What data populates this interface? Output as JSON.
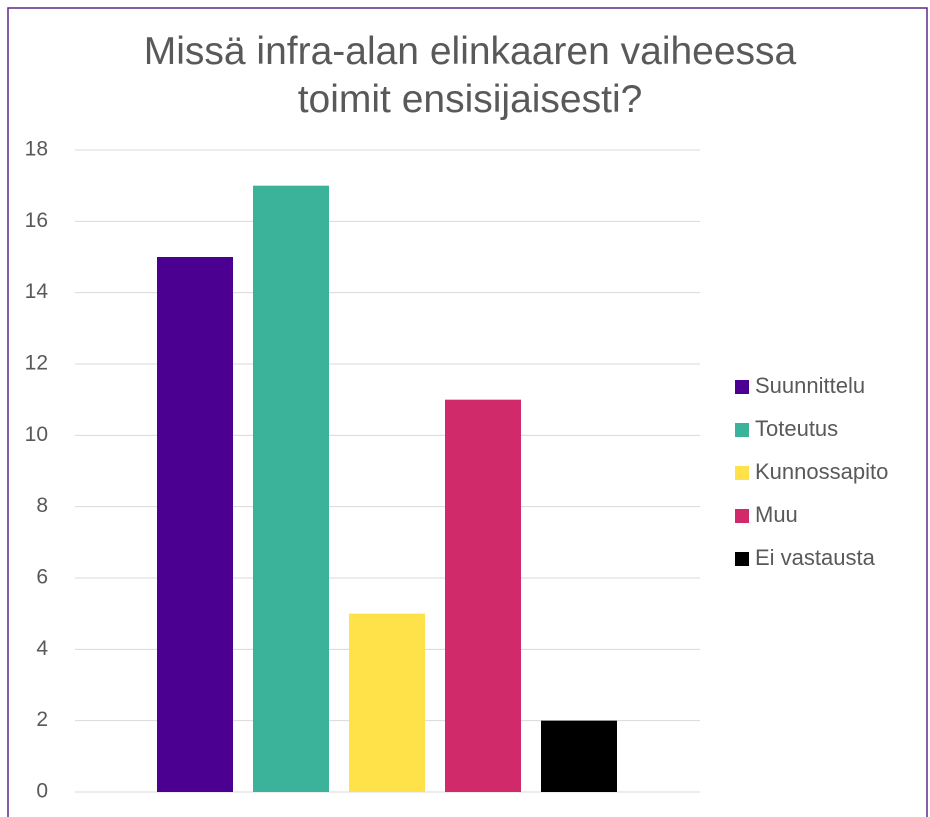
{
  "chart_data": {
    "type": "bar",
    "title": "Missä infra-alan elinkaaren vaiheessa toimit ensisijaisesti?",
    "categories": [
      "Suunnittelu",
      "Toteutus",
      "Kunnossapito",
      "Muu",
      "Ei vastausta"
    ],
    "values": [
      15,
      17,
      5,
      11,
      2
    ],
    "colors": [
      "#4b0091",
      "#3bb39a",
      "#ffe14a",
      "#d12a6a",
      "#000000"
    ],
    "ylim": [
      0,
      18
    ],
    "yticks": [
      0,
      2,
      4,
      6,
      8,
      10,
      12,
      14,
      16,
      18
    ],
    "grid": true,
    "legend": "right"
  }
}
